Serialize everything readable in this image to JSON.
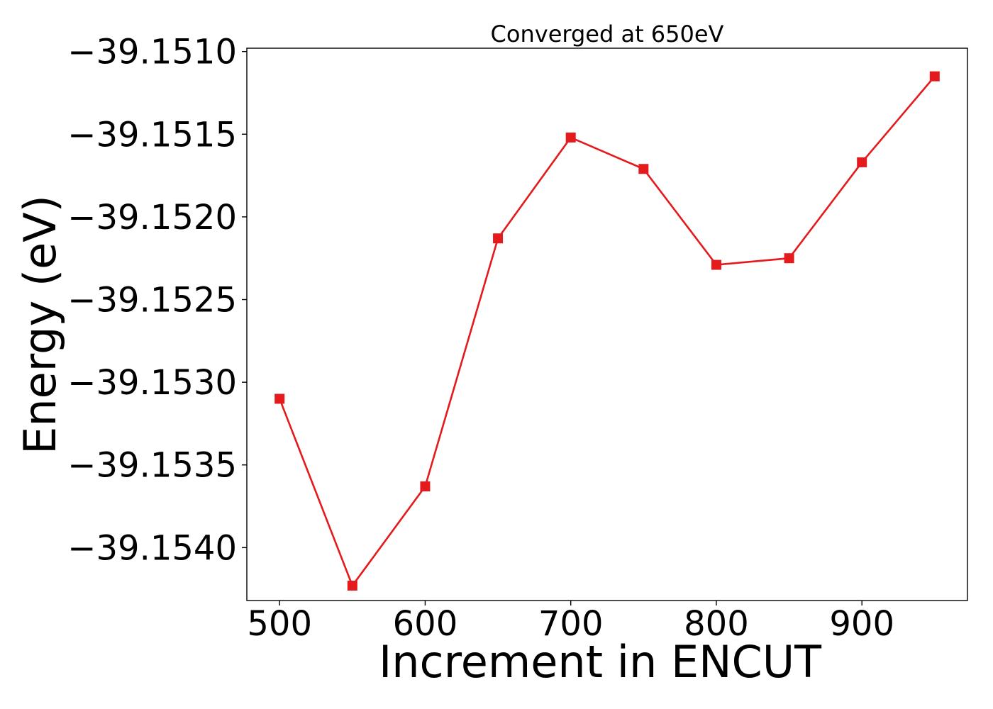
{
  "chart_data": {
    "type": "line",
    "title": "Converged at 650eV",
    "xlabel": "Increment in ENCUT",
    "ylabel": "Energy (eV)",
    "x": [
      500,
      550,
      600,
      650,
      700,
      750,
      800,
      850,
      900,
      950
    ],
    "series": [
      {
        "values": [
          -39.1531,
          -39.15423,
          -39.15363,
          -39.15213,
          -39.15152,
          -39.15171,
          -39.15229,
          -39.15225,
          -39.15167,
          -39.15115
        ],
        "color": "#e41a1c",
        "marker": "square"
      }
    ],
    "xticks": [
      500,
      600,
      700,
      800,
      900
    ],
    "xtick_labels": [
      "500",
      "600",
      "700",
      "800",
      "900"
    ],
    "yticks": [
      -39.154,
      -39.1535,
      -39.153,
      -39.1525,
      -39.152,
      -39.1515,
      -39.151
    ],
    "ytick_labels": [
      "−39.1540",
      "−39.1535",
      "−39.1530",
      "−39.1525",
      "−39.1520",
      "−39.1515",
      "−39.1510"
    ],
    "xlim": [
      477.5,
      972.5
    ],
    "ylim": [
      -39.15432,
      -39.15098
    ],
    "grid": false
  }
}
